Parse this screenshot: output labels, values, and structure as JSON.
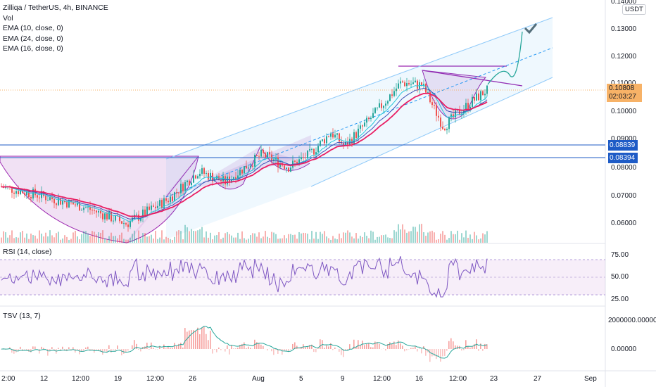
{
  "header": {
    "symbol_title": "Zilliqa / TetherUS, 4h, BINANCE",
    "indicators": [
      "Vol",
      "EMA (10, close, 0)",
      "EMA (24, close, 0)",
      "EMA (16, close, 0)"
    ]
  },
  "price_axis": {
    "currency_badge": "USDT",
    "ticks": [
      "0.14000",
      "0.13000",
      "0.12000",
      "0.11000",
      "0.10000",
      "0.09000",
      "0.08000",
      "0.07000",
      "0.06000"
    ],
    "current_price": "0.10808",
    "countdown": "02:03:27",
    "level_tags": [
      "0.08839",
      "0.08394"
    ]
  },
  "rsi_pane": {
    "label": "RSI (14, close)",
    "ticks": [
      "75.00",
      "50.00",
      "25.00"
    ]
  },
  "tsv_pane": {
    "label": "TSV (13, 7)",
    "ticks": [
      "2000000.00000",
      "0.00000"
    ]
  },
  "time_axis": {
    "ticks": [
      "2:00",
      "12",
      "12:00",
      "19",
      "12:00",
      "26",
      "Aug",
      "5",
      "9",
      "12:00",
      "16",
      "12:00",
      "23",
      "27",
      "Sep"
    ]
  },
  "colors": {
    "ema_fast": "#26c6da",
    "ema_mid": "#3f51b5",
    "ema_slow": "#e91e63",
    "up_candle": "#26a69a",
    "down_candle": "#ef5350",
    "channel": "#2196f3",
    "pattern_fill": "#9c27b0",
    "level_line": "#1e5bc6",
    "current_price_bg": "#f7b267"
  },
  "chart_data": {
    "type": "line",
    "title": "Zilliqa / TetherUS, 4h, BINANCE",
    "x": [
      "12",
      "19",
      "26",
      "Aug",
      "5",
      "9",
      "16",
      "23"
    ],
    "series": [
      {
        "name": "EMA (24, close, 0)",
        "values": [
          0.0685,
          0.0605,
          0.0705,
          0.08,
          0.0805,
          0.087,
          0.102,
          0.106
        ]
      }
    ],
    "ylim": [
      0.055,
      0.14
    ],
    "horizontal_levels": [
      0.08839,
      0.08394
    ],
    "current_price": 0.10808
  }
}
